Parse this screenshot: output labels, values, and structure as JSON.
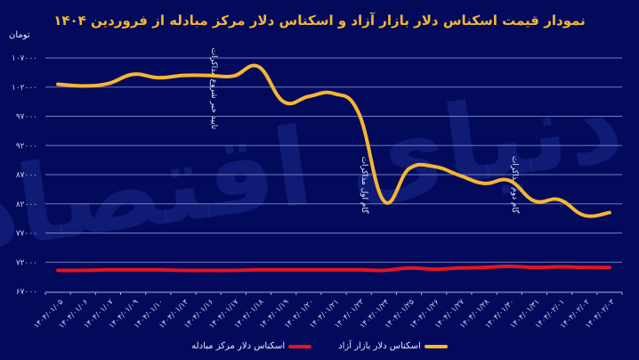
{
  "header": {
    "title": "نمودار قیمت اسکناس دلار بازار آزاد و اسکناس دلار مرکز مبادله از فروردین ۱۴۰۴",
    "unit": "تومان"
  },
  "colors": {
    "background": "#030a5c",
    "free_market": "#f4b731",
    "exchange_center": "#e8141c",
    "grid": "#8f98d8",
    "title": "#f4b731"
  },
  "legend": [
    {
      "label": "اسکناس دلار بازار آزاد",
      "color": "#f4b731"
    },
    {
      "label": "اسکناس دلار مرکز مبادله",
      "color": "#e8141c"
    }
  ],
  "annotations": [
    {
      "label": "تایید خبر شروع مذاکرات",
      "category_index": 6
    },
    {
      "label": "گام اول مذاکرات",
      "category_index": 12
    },
    {
      "label": "گام دوم مذاکرات",
      "category_index": 18
    }
  ],
  "chart_data": {
    "type": "line",
    "title": "نمودار قیمت اسکناس دلار بازار آزاد و اسکناس دلار مرکز مبادله از فروردین ۱۴۰۴",
    "xlabel": "",
    "ylabel": "تومان",
    "ylim": [
      67000,
      107000
    ],
    "yticks": [
      67000,
      72000,
      77000,
      82000,
      87000,
      92000,
      97000,
      102000,
      107000
    ],
    "ytick_labels": [
      "۶۷۰۰۰",
      "۷۲۰۰۰",
      "۷۷۰۰۰",
      "۸۲۰۰۰",
      "۸۷۰۰۰",
      "۹۲۰۰۰",
      "۹۷۰۰۰",
      "۱۰۲۰۰۰",
      "۱۰۷۰۰۰"
    ],
    "grid": true,
    "legend_position": "bottom",
    "categories": [
      "۱۴۰۴/۰۱/۰۵",
      "۱۴۰۴/۰۱/۰۶",
      "۱۴۰۴/۰۱/۰۷",
      "۱۴۰۴/۰۱/۰۹",
      "۱۴۰۴/۰۱/۱۰",
      "۱۴۰۴/۰۱/۱۴",
      "۱۴۰۴/۰۱/۱۶",
      "۱۴۰۴/۰۱/۱۷",
      "۱۴۰۴/۰۱/۱۸",
      "۱۴۰۴/۰۱/۱۹",
      "۱۴۰۴/۰۱/۲۰",
      "۱۴۰۴/۰۱/۲۱",
      "۱۴۰۴/۰۱/۲۳",
      "۱۴۰۴/۰۱/۲۴",
      "۱۴۰۴/۰۱/۲۵",
      "۱۴۰۴/۰۱/۲۶",
      "۱۴۰۴/۰۱/۲۷",
      "۱۴۰۴/۰۱/۲۸",
      "۱۴۰۴/۰۱/۳۰",
      "۱۴۰۴/۰۱/۳۱",
      "۱۴۰۴/۰۲/۰۱",
      "۱۴۰۴/۰۲/۰۲",
      "۱۴۰۴/۰۲/۰۳"
    ],
    "series": [
      {
        "name": "اسکناس دلار بازار آزاد",
        "color": "#f4b731",
        "values": [
          102500,
          102200,
          102600,
          104200,
          103600,
          104000,
          104000,
          103900,
          105500,
          99500,
          100400,
          100900,
          97500,
          82500,
          88000,
          88400,
          86900,
          85500,
          86000,
          82500,
          82700,
          80000,
          80500
        ]
      },
      {
        "name": "اسکناس دلار مرکز مبادله",
        "color": "#e8141c",
        "values": [
          70600,
          70600,
          70700,
          70700,
          70700,
          70600,
          70600,
          70600,
          70700,
          70700,
          70700,
          70700,
          70700,
          70600,
          71000,
          70800,
          71000,
          71100,
          71300,
          71100,
          71200,
          71100,
          71100
        ]
      }
    ]
  }
}
